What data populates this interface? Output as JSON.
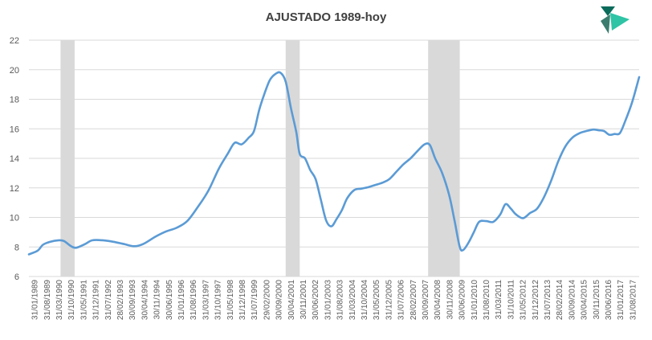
{
  "chart_data": {
    "type": "line",
    "title": "AJUSTADO 1989-hoy",
    "xlabel": "",
    "ylabel": "",
    "ylim": [
      6,
      22
    ],
    "yticks": [
      "6",
      "8",
      "10",
      "12",
      "14",
      "16",
      "18",
      "20",
      "22"
    ],
    "grid": true,
    "legend": "none",
    "colors": {
      "line": "#5b9bd5",
      "shading": "#d9d9d9",
      "grid": "#d9d9d9",
      "logo_dark": "#0b6b5b",
      "logo_light": "#2ec4a5"
    },
    "x_range": [
      "1989-01",
      "2017-12"
    ],
    "x_tick_labels": [
      "31/01/1989",
      "31/08/1989",
      "31/03/1990",
      "31/10/1990",
      "31/05/1991",
      "31/12/1991",
      "31/07/1992",
      "28/02/1993",
      "30/09/1993",
      "30/04/1994",
      "30/11/1994",
      "30/06/1995",
      "31/01/1996",
      "31/08/1996",
      "31/03/1997",
      "31/10/1997",
      "31/05/1998",
      "31/12/1998",
      "31/07/1999",
      "29/02/2000",
      "30/09/2000",
      "30/04/2001",
      "30/11/2001",
      "30/06/2002",
      "31/01/2003",
      "31/08/2003",
      "31/03/2004",
      "31/10/2004",
      "31/05/2005",
      "31/12/2005",
      "31/07/2006",
      "28/02/2007",
      "30/09/2007",
      "30/04/2008",
      "30/11/2008",
      "30/06/2009",
      "31/01/2010",
      "31/08/2010",
      "31/03/2011",
      "31/10/2011",
      "31/05/2012",
      "31/12/2012",
      "31/07/2013",
      "28/02/2014",
      "30/09/2014",
      "30/04/2015",
      "30/11/2015",
      "30/06/2016",
      "31/01/2017",
      "31/08/2017"
    ],
    "shaded_periods": [
      {
        "start": "1990-07",
        "end": "1991-03"
      },
      {
        "start": "2001-03",
        "end": "2001-11"
      },
      {
        "start": "2007-12",
        "end": "2009-06"
      }
    ],
    "series": [
      {
        "points": [
          [
            "1989-01",
            7.5
          ],
          [
            "1989-06",
            7.75
          ],
          [
            "1989-09",
            8.15
          ],
          [
            "1990-01",
            8.35
          ],
          [
            "1990-06",
            8.45
          ],
          [
            "1990-09",
            8.4
          ],
          [
            "1991-01",
            8.05
          ],
          [
            "1991-04",
            7.95
          ],
          [
            "1991-09",
            8.2
          ],
          [
            "1992-01",
            8.45
          ],
          [
            "1992-07",
            8.45
          ],
          [
            "1993-01",
            8.35
          ],
          [
            "1993-07",
            8.2
          ],
          [
            "1994-01",
            8.05
          ],
          [
            "1994-06",
            8.2
          ],
          [
            "1995-01",
            8.7
          ],
          [
            "1995-07",
            9.05
          ],
          [
            "1996-01",
            9.3
          ],
          [
            "1996-07",
            9.75
          ],
          [
            "1997-01",
            10.7
          ],
          [
            "1997-07",
            11.8
          ],
          [
            "1998-01",
            13.3
          ],
          [
            "1998-06",
            14.3
          ],
          [
            "1998-10",
            15.05
          ],
          [
            "1999-02",
            14.95
          ],
          [
            "1999-06",
            15.4
          ],
          [
            "1999-09",
            15.85
          ],
          [
            "1999-12",
            17.3
          ],
          [
            "2000-03",
            18.4
          ],
          [
            "2000-06",
            19.3
          ],
          [
            "2000-09",
            19.7
          ],
          [
            "2000-12",
            19.8
          ],
          [
            "2001-03",
            19.2
          ],
          [
            "2001-06",
            17.4
          ],
          [
            "2001-09",
            15.8
          ],
          [
            "2001-11",
            14.3
          ],
          [
            "2002-02",
            14.0
          ],
          [
            "2002-05",
            13.2
          ],
          [
            "2002-08",
            12.6
          ],
          [
            "2002-11",
            11.2
          ],
          [
            "2003-02",
            9.8
          ],
          [
            "2003-05",
            9.4
          ],
          [
            "2003-08",
            9.9
          ],
          [
            "2003-11",
            10.5
          ],
          [
            "2004-02",
            11.3
          ],
          [
            "2004-06",
            11.85
          ],
          [
            "2004-10",
            11.95
          ],
          [
            "2005-02",
            12.05
          ],
          [
            "2005-06",
            12.2
          ],
          [
            "2005-10",
            12.35
          ],
          [
            "2006-02",
            12.6
          ],
          [
            "2006-06",
            13.1
          ],
          [
            "2006-10",
            13.6
          ],
          [
            "2007-02",
            14.0
          ],
          [
            "2007-06",
            14.5
          ],
          [
            "2007-10",
            14.95
          ],
          [
            "2008-01",
            14.9
          ],
          [
            "2008-04",
            14.0
          ],
          [
            "2008-08",
            13.0
          ],
          [
            "2008-12",
            11.5
          ],
          [
            "2009-03",
            9.8
          ],
          [
            "2009-06",
            8.0
          ],
          [
            "2009-08",
            7.8
          ],
          [
            "2009-11",
            8.3
          ],
          [
            "2010-02",
            9.0
          ],
          [
            "2010-05",
            9.7
          ],
          [
            "2010-09",
            9.75
          ],
          [
            "2011-01",
            9.7
          ],
          [
            "2011-05",
            10.2
          ],
          [
            "2011-08",
            10.9
          ],
          [
            "2011-11",
            10.6
          ],
          [
            "2012-02",
            10.2
          ],
          [
            "2012-06",
            9.95
          ],
          [
            "2012-10",
            10.3
          ],
          [
            "2013-02",
            10.6
          ],
          [
            "2013-06",
            11.4
          ],
          [
            "2013-10",
            12.5
          ],
          [
            "2014-02",
            13.8
          ],
          [
            "2014-06",
            14.8
          ],
          [
            "2014-10",
            15.4
          ],
          [
            "2015-02",
            15.7
          ],
          [
            "2015-06",
            15.85
          ],
          [
            "2015-10",
            15.95
          ],
          [
            "2016-01",
            15.9
          ],
          [
            "2016-04",
            15.85
          ],
          [
            "2016-07",
            15.6
          ],
          [
            "2016-10",
            15.65
          ],
          [
            "2017-01",
            15.7
          ],
          [
            "2017-04",
            16.5
          ],
          [
            "2017-08",
            17.8
          ],
          [
            "2017-12",
            19.5
          ]
        ]
      }
    ]
  }
}
